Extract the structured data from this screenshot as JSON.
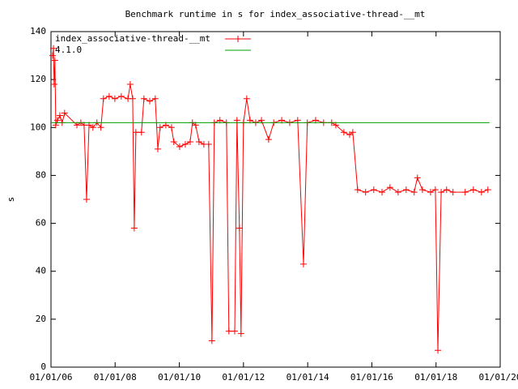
{
  "chart_data": {
    "type": "line",
    "title": "Benchmark runtime in s for index_associative-thread-__mt",
    "y_label": "s",
    "xlim": [
      "2006-01-01",
      "2020-01-01"
    ],
    "xticks": [
      {
        "value": "2006-01-01",
        "label": "01/01/06"
      },
      {
        "value": "2008-01-01",
        "label": "01/01/08"
      },
      {
        "value": "2010-01-01",
        "label": "01/01/10"
      },
      {
        "value": "2012-01-01",
        "label": "01/01/12"
      },
      {
        "value": "2014-01-01",
        "label": "01/01/14"
      },
      {
        "value": "2016-01-01",
        "label": "01/01/16"
      },
      {
        "value": "2018-01-01",
        "label": "01/01/18"
      },
      {
        "value": "2020-01-01",
        "label": "01/01/20"
      }
    ],
    "ylim": [
      0,
      140
    ],
    "yticks": [
      0,
      20,
      40,
      60,
      80,
      100,
      120,
      140
    ],
    "grid": false,
    "legend": "top-left",
    "series": [
      {
        "name": "index_associative-thread-__mt",
        "color": "#ff0000",
        "marker": "plus",
        "x": [
          "2006-01-20",
          "2006-01-29",
          "2006-02-06",
          "2006-02-15",
          "2006-02-24",
          "2006-03-15",
          "2006-04-12",
          "2006-05-08",
          "2006-06-05",
          "2006-10-23",
          "2006-12-07",
          "2007-01-13",
          "2007-02-10",
          "2007-03-10",
          "2007-04-23",
          "2007-06-08",
          "2007-07-23",
          "2007-08-21",
          "2007-10-25",
          "2007-12-29",
          "2008-03-11",
          "2008-05-26",
          "2008-06-21",
          "2008-07-19",
          "2008-08-06",
          "2008-08-24",
          "2008-10-27",
          "2008-11-24",
          "2009-01-29",
          "2009-04-02",
          "2009-05-01",
          "2009-05-27",
          "2009-07-31",
          "2009-10-04",
          "2009-10-30",
          "2010-01-04",
          "2010-03-10",
          "2010-05-04",
          "2010-05-30",
          "2010-07-06",
          "2010-08-13",
          "2010-10-07",
          "2010-12-01",
          "2011-01-07",
          "2011-02-03",
          "2011-04-08",
          "2011-06-21",
          "2011-07-19",
          "2011-09-23",
          "2011-10-19",
          "2011-11-16",
          "2011-12-04",
          "2012-01-01",
          "2012-02-07",
          "2012-03-15",
          "2012-05-19",
          "2012-07-24",
          "2012-10-13",
          "2012-12-10",
          "2013-03-11",
          "2013-06-10",
          "2013-09-09",
          "2013-11-14",
          "2013-12-28",
          "2014-04-01",
          "2014-07-01",
          "2014-10-01",
          "2014-11-17",
          "2015-02-17",
          "2015-04-23",
          "2015-05-29",
          "2015-07-23",
          "2015-10-22",
          "2016-01-23",
          "2016-04-26",
          "2016-07-26",
          "2016-10-26",
          "2017-01-26",
          "2017-04-27",
          "2017-06-03",
          "2017-07-30",
          "2017-10-30",
          "2017-12-24",
          "2018-01-22",
          "2018-02-28",
          "2018-05-01",
          "2018-07-13",
          "2018-11-28",
          "2019-03-01",
          "2019-06-02",
          "2019-08-14"
        ],
        "values": [
          130,
          133,
          118,
          128,
          101,
          103,
          105,
          102,
          106,
          101,
          102,
          101,
          70,
          101,
          100,
          102,
          100,
          112,
          113,
          112,
          113,
          112,
          118,
          112,
          58,
          98,
          98,
          112,
          111,
          112,
          91,
          100,
          101,
          100,
          94,
          92,
          93,
          94,
          102,
          101,
          94,
          93,
          93,
          11,
          102,
          103,
          102,
          15,
          15,
          103,
          58,
          14,
          102,
          112,
          103,
          102,
          103,
          95,
          102,
          103,
          102,
          103,
          43,
          102,
          103,
          102,
          102,
          101,
          98,
          97,
          98,
          74,
          73,
          74,
          73,
          75,
          73,
          74,
          73,
          79,
          74,
          73,
          74,
          7,
          73,
          74,
          73,
          73,
          74,
          73,
          74
        ]
      },
      {
        "name": "4.1.0",
        "color": "#00a000",
        "x": [
          "2006-01-01",
          "2019-09-01"
        ],
        "values": [
          102,
          102
        ]
      }
    ]
  }
}
